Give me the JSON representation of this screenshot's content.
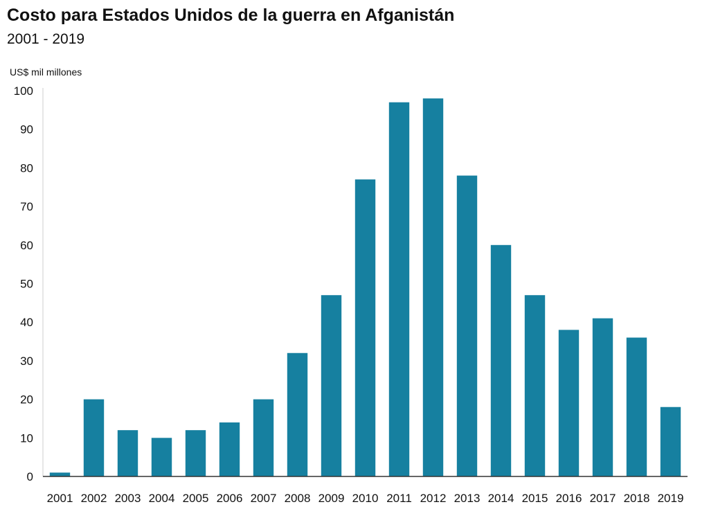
{
  "chart_data": {
    "type": "bar",
    "title": "Costo para Estados Unidos de la guerra en Afganistán",
    "subtitle": "2001 - 2019",
    "ylabel": "US$ mil millones",
    "xlabel": "",
    "categories": [
      "2001",
      "2002",
      "2003",
      "2004",
      "2005",
      "2006",
      "2007",
      "2008",
      "2009",
      "2010",
      "2011",
      "2012",
      "2013",
      "2014",
      "2015",
      "2016",
      "2017",
      "2018",
      "2019"
    ],
    "values": [
      1,
      20,
      12,
      10,
      12,
      14,
      20,
      32,
      47,
      77,
      97,
      98,
      78,
      60,
      47,
      38,
      41,
      36,
      18
    ],
    "ylim": [
      0,
      100
    ],
    "yticks": [
      0,
      10,
      20,
      30,
      40,
      50,
      60,
      70,
      80,
      90,
      100
    ],
    "grid": false,
    "legend": "none",
    "bar_color": "#1680a0"
  }
}
